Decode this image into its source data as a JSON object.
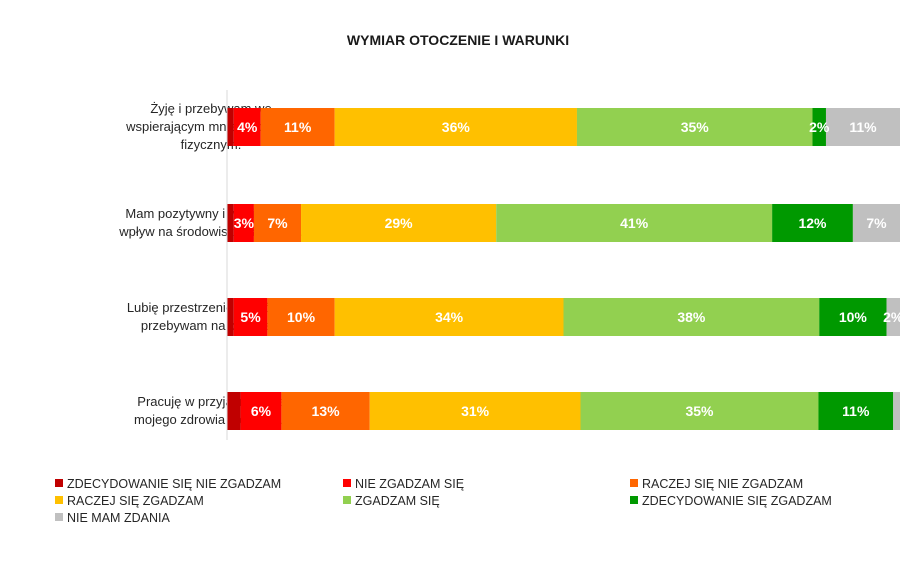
{
  "chart_data": {
    "type": "bar",
    "orientation": "horizontal",
    "stacked": true,
    "percent": true,
    "title": "WYMIAR OTOCZENIE I WARUNKI",
    "xlim": [
      0,
      100
    ],
    "legend_position": "bottom",
    "categories": [
      [
        "Żyję i przebywam we",
        "wspierającym mnie otoczeniu",
        "fizycznym."
      ],
      [
        "Mam pozytywny i wspierający",
        "wpływ na środowisko naturalne."
      ],
      [
        "Lubię przestrzenie, w których",
        "przebywam na co dzień."
      ],
      [
        "Pracuję w przyjaznym dla",
        "mojego zdrowia otoczeniu."
      ]
    ],
    "series": [
      {
        "name": "ZDECYDOWANIE SIĘ NIE ZGADZAM",
        "color": "#c00000",
        "values": [
          1,
          1,
          1,
          2
        ],
        "labels": [
          "",
          "",
          "",
          ""
        ]
      },
      {
        "name": "NIE ZGADZAM SIĘ",
        "color": "#ff0000",
        "values": [
          4,
          3,
          5,
          6
        ],
        "labels": [
          "4%",
          "3%",
          "5%",
          "6%"
        ]
      },
      {
        "name": "RACZEJ SIĘ NIE ZGADZAM",
        "color": "#ff6600",
        "values": [
          11,
          7,
          10,
          13
        ],
        "labels": [
          "11%",
          "7%",
          "10%",
          "13%"
        ]
      },
      {
        "name": "RACZEJ SIĘ ZGADZAM",
        "color": "#ffc000",
        "values": [
          36,
          29,
          34,
          31
        ],
        "labels": [
          "36%",
          "29%",
          "34%",
          "31%"
        ]
      },
      {
        "name": "ZGADZAM SIĘ",
        "color": "#92d050",
        "values": [
          35,
          41,
          38,
          35
        ],
        "labels": [
          "35%",
          "41%",
          "38%",
          "35%"
        ]
      },
      {
        "name": "ZDECYDOWANIE SIĘ ZGADZAM",
        "color": "#009900",
        "values": [
          2,
          12,
          10,
          11
        ],
        "labels": [
          "2%",
          "12%",
          "10%",
          "11%"
        ]
      },
      {
        "name": "NIE MAM ZDANIA",
        "color": "#c0c0c0",
        "values": [
          11,
          7,
          2,
          1
        ],
        "labels": [
          "11%",
          "7%",
          "2%",
          ""
        ]
      }
    ]
  }
}
